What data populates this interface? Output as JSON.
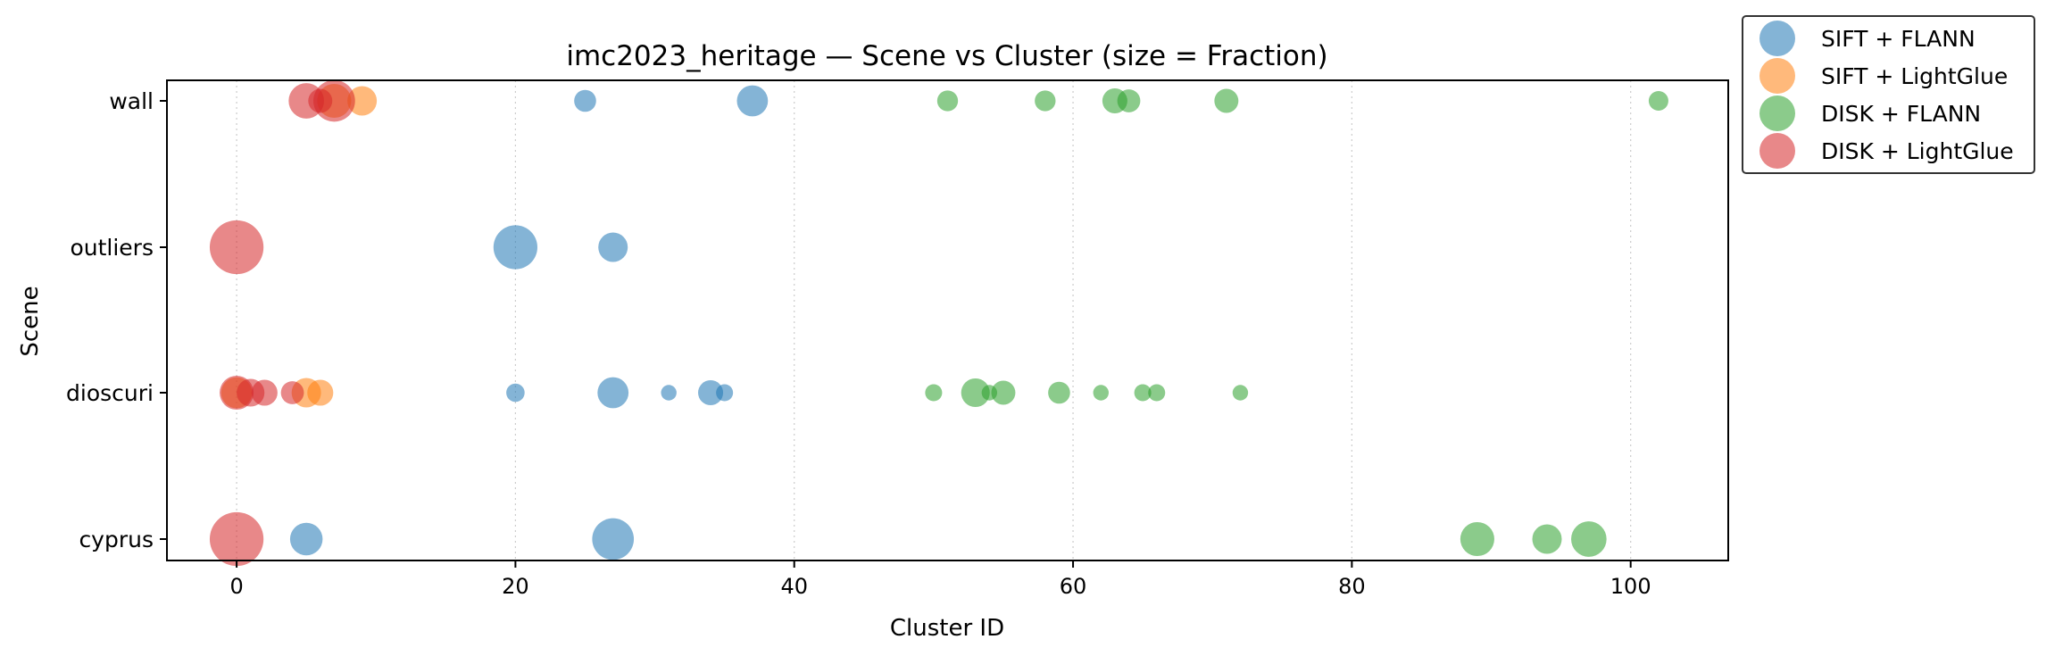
{
  "chart_data": {
    "type": "scatter",
    "title": "imc2023_heritage — Scene vs Cluster (size = Fraction)",
    "xlabel": "Cluster ID",
    "ylabel": "Scene",
    "xlim": [
      -5,
      107
    ],
    "xticks": [
      0,
      20,
      40,
      60,
      80,
      100
    ],
    "scenes": [
      "cyprus",
      "dioscuri",
      "outliers",
      "wall"
    ],
    "grid": "vertical dotted",
    "legend_position": "outside top-right",
    "series": [
      {
        "name": "SIFT + FLANN",
        "color": "#1f77b4",
        "points": [
          {
            "x": 25,
            "scene": "wall",
            "size": 0.05
          },
          {
            "x": 37,
            "scene": "wall",
            "size": 0.1
          },
          {
            "x": 20,
            "scene": "outliers",
            "size": 0.2
          },
          {
            "x": 27,
            "scene": "outliers",
            "size": 0.09
          },
          {
            "x": 20,
            "scene": "dioscuri",
            "size": 0.035
          },
          {
            "x": 27,
            "scene": "dioscuri",
            "size": 0.1
          },
          {
            "x": 31,
            "scene": "dioscuri",
            "size": 0.025
          },
          {
            "x": 34,
            "scene": "dioscuri",
            "size": 0.065
          },
          {
            "x": 35,
            "scene": "dioscuri",
            "size": 0.03
          },
          {
            "x": 5,
            "scene": "cyprus",
            "size": 0.11
          },
          {
            "x": 27,
            "scene": "cyprus",
            "size": 0.18
          }
        ]
      },
      {
        "name": "SIFT + LightGlue",
        "color": "#ff7f0e",
        "points": [
          {
            "x": 7,
            "scene": "wall",
            "size": 0.12
          },
          {
            "x": 9,
            "scene": "wall",
            "size": 0.09
          },
          {
            "x": 0,
            "scene": "dioscuri",
            "size": 0.1
          },
          {
            "x": 5,
            "scene": "dioscuri",
            "size": 0.09
          },
          {
            "x": 6,
            "scene": "dioscuri",
            "size": 0.07
          }
        ]
      },
      {
        "name": "DISK + FLANN",
        "color": "#2ca02c",
        "points": [
          {
            "x": 51,
            "scene": "wall",
            "size": 0.045
          },
          {
            "x": 58,
            "scene": "wall",
            "size": 0.045
          },
          {
            "x": 63,
            "scene": "wall",
            "size": 0.065
          },
          {
            "x": 64,
            "scene": "wall",
            "size": 0.055
          },
          {
            "x": 71,
            "scene": "wall",
            "size": 0.06
          },
          {
            "x": 102,
            "scene": "wall",
            "size": 0.04
          },
          {
            "x": 50,
            "scene": "dioscuri",
            "size": 0.03
          },
          {
            "x": 53,
            "scene": "dioscuri",
            "size": 0.085
          },
          {
            "x": 54,
            "scene": "dioscuri",
            "size": 0.025
          },
          {
            "x": 55,
            "scene": "dioscuri",
            "size": 0.06
          },
          {
            "x": 59,
            "scene": "dioscuri",
            "size": 0.05
          },
          {
            "x": 62,
            "scene": "dioscuri",
            "size": 0.025
          },
          {
            "x": 65,
            "scene": "dioscuri",
            "size": 0.03
          },
          {
            "x": 66,
            "scene": "dioscuri",
            "size": 0.03
          },
          {
            "x": 72,
            "scene": "dioscuri",
            "size": 0.025
          },
          {
            "x": 89,
            "scene": "cyprus",
            "size": 0.12
          },
          {
            "x": 94,
            "scene": "cyprus",
            "size": 0.09
          },
          {
            "x": 97,
            "scene": "cyprus",
            "size": 0.13
          }
        ]
      },
      {
        "name": "DISK + LightGlue",
        "color": "#d62728",
        "points": [
          {
            "x": 5,
            "scene": "wall",
            "size": 0.13
          },
          {
            "x": 6,
            "scene": "wall",
            "size": 0.06
          },
          {
            "x": 7,
            "scene": "wall",
            "size": 0.18
          },
          {
            "x": 0,
            "scene": "outliers",
            "size": 0.3
          },
          {
            "x": 0,
            "scene": "dioscuri",
            "size": 0.12
          },
          {
            "x": 1,
            "scene": "dioscuri",
            "size": 0.08
          },
          {
            "x": 2,
            "scene": "dioscuri",
            "size": 0.07
          },
          {
            "x": 4,
            "scene": "dioscuri",
            "size": 0.055
          },
          {
            "x": 0,
            "scene": "cyprus",
            "size": 0.3
          }
        ]
      }
    ]
  }
}
